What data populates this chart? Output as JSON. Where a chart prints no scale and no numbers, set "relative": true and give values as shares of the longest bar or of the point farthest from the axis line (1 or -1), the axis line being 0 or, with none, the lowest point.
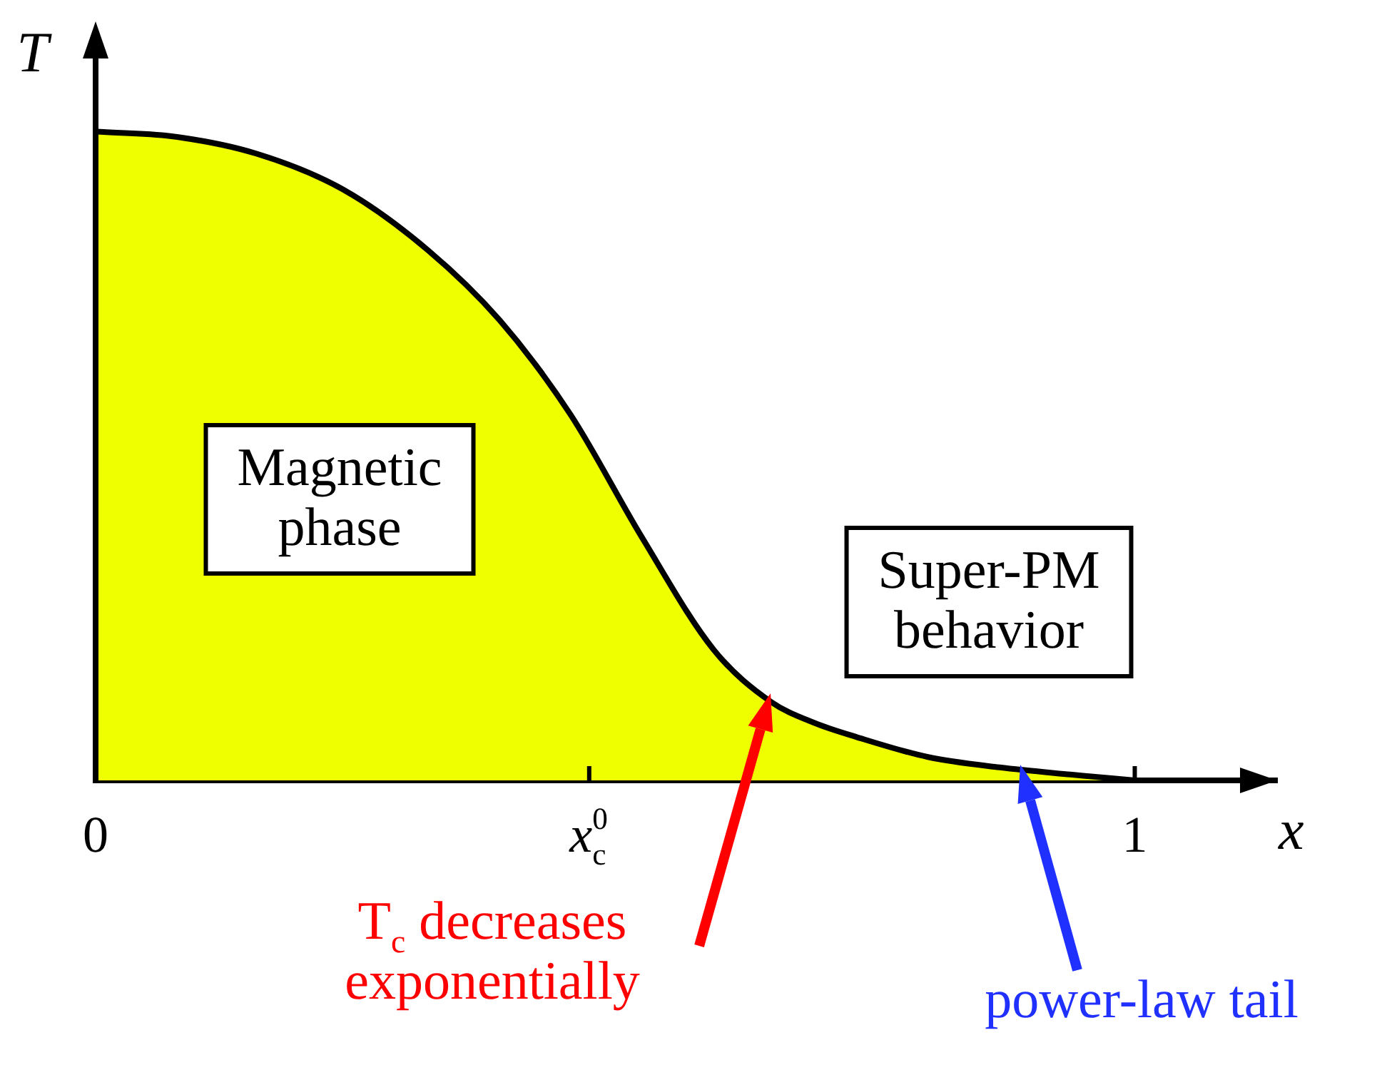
{
  "chart_data": {
    "type": "area",
    "relative": true,
    "xlabel": "x",
    "ylabel": "T",
    "x": [
      0,
      0.073,
      0.155,
      0.238,
      0.32,
      0.389,
      0.457,
      0.526,
      0.595,
      0.65,
      0.691,
      0.732,
      0.801,
      0.87,
      0.938,
      1
    ],
    "series": [
      {
        "color": "#f0ff00",
        "values": [
          1,
          0.993,
          0.966,
          0.911,
          0.817,
          0.709,
          0.564,
          0.374,
          0.201,
          0.121,
          0.089,
          0.067,
          0.036,
          0.02,
          0.009,
          0
        ]
      }
    ],
    "xlim": [
      0,
      1.137
    ],
    "xticks": [
      0,
      {
        "value": 0.475,
        "label": "x$_{c}$$^{0}$"
      },
      1
    ],
    "grid": false,
    "legend": false,
    "annotations": [
      "Magnetic phase",
      "Super-PM behavior",
      "T$_{c}$ decreases exponentially",
      "power-law tail"
    ]
  }
}
